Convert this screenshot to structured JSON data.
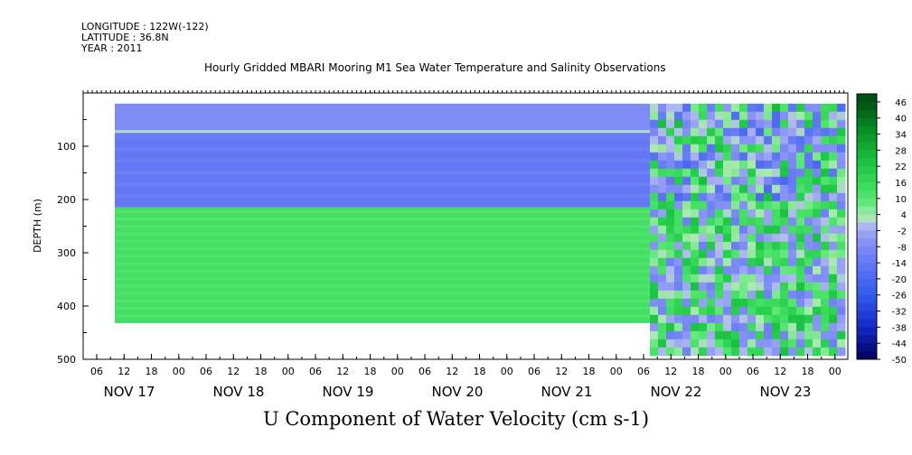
{
  "header": {
    "longitude": "LONGITUDE : 122W(-122)",
    "latitude": "LATITUDE : 36.8N",
    "year": "YEAR : 2011",
    "title": "Hourly Gridded MBARI Mooring M1 Sea Water Temperature and Salinity Observations"
  },
  "chart_data": {
    "type": "heatmap",
    "title": "Hourly Gridded MBARI Mooring M1 Sea Water Temperature and Salinity Observations",
    "xlabel": "U Component of Water Velocity (cm s-1)",
    "ylabel": "DEPTH (m)",
    "ylim": [
      500,
      0
    ],
    "y_ticks": [
      100,
      200,
      300,
      400,
      500
    ],
    "x_hour_labels": [
      "06",
      "12",
      "18",
      "00",
      "06",
      "12",
      "18",
      "00",
      "06",
      "12",
      "18",
      "00",
      "06",
      "12",
      "18",
      "00",
      "06",
      "12",
      "18",
      "00",
      "06",
      "12",
      "18",
      "00",
      "06",
      "12",
      "18",
      "00"
    ],
    "x_day_labels": [
      "NOV 17",
      "NOV 18",
      "NOV 19",
      "NOV 20",
      "NOV 21",
      "NOV 22",
      "NOV 23"
    ],
    "colorbar": {
      "labels": [
        46,
        40,
        34,
        28,
        22,
        16,
        10,
        4,
        -2,
        -8,
        -14,
        -20,
        -26,
        -32,
        -38,
        -44,
        -50
      ],
      "min": -50,
      "max": 49,
      "step": 3
    },
    "constant_period": {
      "x_start": "NOV 17 06",
      "x_end": "NOV 21 18",
      "depth_top": 20,
      "depth_bottom": 432,
      "layers": [
        {
          "from": 20,
          "to": 70,
          "value": -8
        },
        {
          "from": 70,
          "to": 75,
          "value": 2
        },
        {
          "from": 75,
          "to": 215,
          "value": -14
        },
        {
          "from": 215,
          "to": 432,
          "value": 13
        }
      ]
    },
    "variable_period": {
      "x_start": "NOV 21 18",
      "x_end": "NOV 24 00",
      "depth_top": 20,
      "depth_bottom": 488,
      "description_values": "mixed -20 to 46, mostly 0 to 20 below 200 m"
    }
  }
}
